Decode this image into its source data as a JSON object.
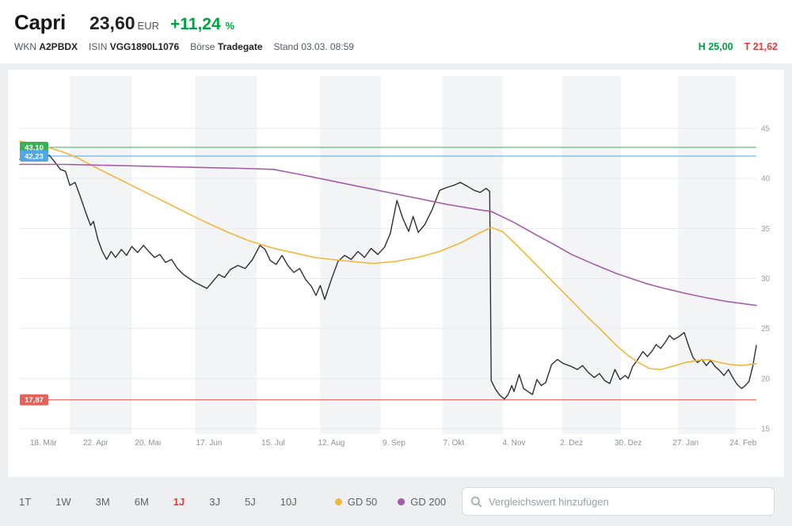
{
  "header": {
    "title": "Capri",
    "price": "23,60",
    "currency": "EUR",
    "change_value": "+11,24",
    "change_unit": "%",
    "wkn_label": "WKN",
    "wkn": "A2PBDX",
    "isin_label": "ISIN",
    "isin": "VGG1890L1076",
    "boerse_label": "Börse",
    "boerse": "Tradegate",
    "stand_label": "Stand",
    "stand": "03.03. 08:59",
    "high_label": "H",
    "high_value": "25,00",
    "low_label": "T",
    "low_value": "21,62"
  },
  "toolbar": {
    "ranges": [
      {
        "label": "1T",
        "active": false
      },
      {
        "label": "1W",
        "active": false
      },
      {
        "label": "3M",
        "active": false
      },
      {
        "label": "6M",
        "active": false
      },
      {
        "label": "1J",
        "active": true
      },
      {
        "label": "3J",
        "active": false
      },
      {
        "label": "5J",
        "active": false
      },
      {
        "label": "10J",
        "active": false
      }
    ],
    "legend": [
      {
        "label": "GD 50",
        "color": "#f1b63b"
      },
      {
        "label": "GD 200",
        "color": "#a45ba8"
      }
    ],
    "search_placeholder": "Vergleichswert hinzufügen"
  },
  "chart_data": {
    "type": "line",
    "title": "",
    "xlabel": "",
    "ylabel": "",
    "y_ticks": [
      15,
      20,
      25,
      30,
      35,
      40,
      45
    ],
    "ylim": [
      15,
      45
    ],
    "x_ticks": [
      {
        "label": "18. Mär",
        "f": 0.032
      },
      {
        "label": "22. Apr",
        "f": 0.103
      },
      {
        "label": "20. Mai",
        "f": 0.174
      },
      {
        "label": "17. Jun",
        "f": 0.257
      },
      {
        "label": "15. Jul",
        "f": 0.344
      },
      {
        "label": "12. Aug",
        "f": 0.423
      },
      {
        "label": "9. Sep",
        "f": 0.508
      },
      {
        "label": "7. Okt",
        "f": 0.589
      },
      {
        "label": "4. Nov",
        "f": 0.671
      },
      {
        "label": "2. Dez",
        "f": 0.749
      },
      {
        "label": "30. Dez",
        "f": 0.826
      },
      {
        "label": "27. Jan",
        "f": 0.904
      },
      {
        "label": "24. Feb",
        "f": 0.982
      }
    ],
    "month_bands": {
      "boundaries": [
        0,
        0.068,
        0.152,
        0.238,
        0.322,
        0.408,
        0.49,
        0.574,
        0.656,
        0.736,
        0.816,
        0.894,
        0.972,
        1.0
      ],
      "stripe_color": "#f3f4f6"
    },
    "reference_lines": [
      {
        "name": "high-52w",
        "value": 43.1,
        "label": "43,10",
        "color": "#3fae58"
      },
      {
        "name": "close",
        "value": 42.23,
        "label": "42,23",
        "color": "#4ea7e6"
      },
      {
        "name": "low-52w",
        "value": 17.87,
        "label": "17,87",
        "color": "#e2635c"
      }
    ],
    "series": [
      {
        "id": "kurs",
        "name": "Kurs",
        "color": "#303030",
        "width": 1.4,
        "points": [
          [
            0.0,
            41.9
          ],
          [
            0.01,
            42.2
          ],
          [
            0.02,
            41.8
          ],
          [
            0.032,
            42.1
          ],
          [
            0.04,
            42.3
          ],
          [
            0.048,
            41.6
          ],
          [
            0.055,
            40.9
          ],
          [
            0.062,
            40.7
          ],
          [
            0.068,
            39.3
          ],
          [
            0.075,
            39.6
          ],
          [
            0.082,
            38.2
          ],
          [
            0.09,
            36.5
          ],
          [
            0.096,
            35.3
          ],
          [
            0.1,
            35.7
          ],
          [
            0.106,
            33.9
          ],
          [
            0.112,
            32.7
          ],
          [
            0.118,
            31.9
          ],
          [
            0.124,
            32.7
          ],
          [
            0.13,
            32.1
          ],
          [
            0.138,
            32.9
          ],
          [
            0.145,
            32.3
          ],
          [
            0.152,
            33.2
          ],
          [
            0.16,
            32.6
          ],
          [
            0.168,
            33.3
          ],
          [
            0.175,
            32.7
          ],
          [
            0.183,
            32.1
          ],
          [
            0.19,
            32.4
          ],
          [
            0.198,
            31.6
          ],
          [
            0.206,
            31.9
          ],
          [
            0.214,
            31.0
          ],
          [
            0.222,
            30.4
          ],
          [
            0.23,
            30.0
          ],
          [
            0.238,
            29.6
          ],
          [
            0.246,
            29.3
          ],
          [
            0.254,
            29.0
          ],
          [
            0.262,
            29.7
          ],
          [
            0.27,
            30.4
          ],
          [
            0.278,
            30.1
          ],
          [
            0.286,
            30.9
          ],
          [
            0.296,
            31.3
          ],
          [
            0.306,
            31.0
          ],
          [
            0.316,
            31.9
          ],
          [
            0.326,
            33.3
          ],
          [
            0.333,
            32.9
          ],
          [
            0.34,
            31.8
          ],
          [
            0.348,
            31.4
          ],
          [
            0.356,
            32.3
          ],
          [
            0.364,
            31.3
          ],
          [
            0.372,
            30.6
          ],
          [
            0.38,
            31.0
          ],
          [
            0.388,
            29.9
          ],
          [
            0.396,
            29.2
          ],
          [
            0.402,
            28.3
          ],
          [
            0.408,
            29.3
          ],
          [
            0.414,
            27.9
          ],
          [
            0.423,
            29.9
          ],
          [
            0.432,
            31.7
          ],
          [
            0.441,
            32.3
          ],
          [
            0.45,
            31.9
          ],
          [
            0.459,
            32.7
          ],
          [
            0.468,
            32.1
          ],
          [
            0.477,
            33.0
          ],
          [
            0.486,
            32.4
          ],
          [
            0.495,
            33.1
          ],
          [
            0.503,
            34.5
          ],
          [
            0.512,
            37.8
          ],
          [
            0.52,
            36.0
          ],
          [
            0.528,
            34.7
          ],
          [
            0.534,
            36.2
          ],
          [
            0.541,
            34.6
          ],
          [
            0.55,
            35.4
          ],
          [
            0.56,
            36.9
          ],
          [
            0.57,
            38.8
          ],
          [
            0.58,
            39.1
          ],
          [
            0.589,
            39.3
          ],
          [
            0.598,
            39.6
          ],
          [
            0.608,
            39.2
          ],
          [
            0.617,
            38.8
          ],
          [
            0.625,
            38.6
          ],
          [
            0.633,
            39.0
          ],
          [
            0.638,
            38.7
          ],
          [
            0.64,
            19.8
          ],
          [
            0.646,
            18.9
          ],
          [
            0.652,
            18.3
          ],
          [
            0.658,
            17.95
          ],
          [
            0.663,
            18.4
          ],
          [
            0.668,
            19.3
          ],
          [
            0.671,
            18.7
          ],
          [
            0.678,
            20.4
          ],
          [
            0.684,
            19.0
          ],
          [
            0.69,
            18.7
          ],
          [
            0.696,
            18.4
          ],
          [
            0.702,
            19.9
          ],
          [
            0.708,
            19.3
          ],
          [
            0.714,
            19.6
          ],
          [
            0.722,
            21.4
          ],
          [
            0.73,
            21.9
          ],
          [
            0.738,
            21.5
          ],
          [
            0.749,
            21.2
          ],
          [
            0.757,
            20.9
          ],
          [
            0.764,
            21.3
          ],
          [
            0.772,
            20.6
          ],
          [
            0.78,
            20.1
          ],
          [
            0.787,
            20.5
          ],
          [
            0.794,
            19.8
          ],
          [
            0.801,
            19.5
          ],
          [
            0.808,
            20.9
          ],
          [
            0.815,
            19.9
          ],
          [
            0.822,
            20.3
          ],
          [
            0.826,
            20.0
          ],
          [
            0.832,
            21.2
          ],
          [
            0.839,
            21.9
          ],
          [
            0.846,
            22.7
          ],
          [
            0.852,
            22.2
          ],
          [
            0.858,
            22.7
          ],
          [
            0.864,
            23.4
          ],
          [
            0.87,
            23.0
          ],
          [
            0.876,
            23.6
          ],
          [
            0.882,
            24.3
          ],
          [
            0.888,
            23.9
          ],
          [
            0.895,
            24.2
          ],
          [
            0.902,
            24.6
          ],
          [
            0.908,
            23.3
          ],
          [
            0.914,
            22.1
          ],
          [
            0.92,
            21.6
          ],
          [
            0.926,
            21.9
          ],
          [
            0.932,
            21.3
          ],
          [
            0.938,
            21.8
          ],
          [
            0.944,
            21.2
          ],
          [
            0.95,
            20.8
          ],
          [
            0.956,
            20.3
          ],
          [
            0.962,
            20.9
          ],
          [
            0.968,
            20.1
          ],
          [
            0.974,
            19.4
          ],
          [
            0.98,
            19.0
          ],
          [
            0.985,
            19.3
          ],
          [
            0.99,
            19.7
          ],
          [
            0.995,
            21.2
          ],
          [
            1.0,
            23.3
          ]
        ]
      },
      {
        "id": "gd50",
        "name": "GD 50",
        "color": "#f1b63b",
        "width": 1.6,
        "points": [
          [
            0.0,
            43.7
          ],
          [
            0.03,
            43.3
          ],
          [
            0.06,
            42.6
          ],
          [
            0.08,
            42.0
          ],
          [
            0.1,
            41.2
          ],
          [
            0.13,
            40.1
          ],
          [
            0.16,
            39.0
          ],
          [
            0.19,
            37.9
          ],
          [
            0.22,
            36.8
          ],
          [
            0.25,
            35.7
          ],
          [
            0.28,
            34.7
          ],
          [
            0.31,
            33.8
          ],
          [
            0.34,
            33.1
          ],
          [
            0.37,
            32.6
          ],
          [
            0.4,
            32.1
          ],
          [
            0.423,
            31.9
          ],
          [
            0.45,
            31.7
          ],
          [
            0.48,
            31.5
          ],
          [
            0.51,
            31.7
          ],
          [
            0.54,
            32.1
          ],
          [
            0.57,
            32.7
          ],
          [
            0.6,
            33.6
          ],
          [
            0.62,
            34.4
          ],
          [
            0.64,
            35.1
          ],
          [
            0.655,
            34.7
          ],
          [
            0.671,
            33.6
          ],
          [
            0.69,
            32.2
          ],
          [
            0.71,
            30.7
          ],
          [
            0.73,
            29.2
          ],
          [
            0.749,
            27.8
          ],
          [
            0.77,
            26.2
          ],
          [
            0.79,
            24.8
          ],
          [
            0.81,
            23.3
          ],
          [
            0.826,
            22.3
          ],
          [
            0.84,
            21.6
          ],
          [
            0.855,
            21.0
          ],
          [
            0.87,
            20.9
          ],
          [
            0.885,
            21.2
          ],
          [
            0.904,
            21.6
          ],
          [
            0.92,
            21.8
          ],
          [
            0.935,
            21.9
          ],
          [
            0.95,
            21.6
          ],
          [
            0.965,
            21.4
          ],
          [
            0.98,
            21.3
          ],
          [
            1.0,
            21.5
          ]
        ]
      },
      {
        "id": "gd200",
        "name": "GD 200",
        "color": "#a45ba8",
        "width": 1.6,
        "points": [
          [
            0.0,
            41.4
          ],
          [
            0.06,
            41.4
          ],
          [
            0.12,
            41.3
          ],
          [
            0.18,
            41.2
          ],
          [
            0.24,
            41.1
          ],
          [
            0.3,
            41.0
          ],
          [
            0.344,
            40.9
          ],
          [
            0.38,
            40.4
          ],
          [
            0.42,
            39.8
          ],
          [
            0.46,
            39.2
          ],
          [
            0.5,
            38.6
          ],
          [
            0.54,
            38.0
          ],
          [
            0.58,
            37.4
          ],
          [
            0.62,
            36.9
          ],
          [
            0.64,
            36.7
          ],
          [
            0.671,
            35.6
          ],
          [
            0.7,
            34.4
          ],
          [
            0.73,
            33.2
          ],
          [
            0.749,
            32.4
          ],
          [
            0.78,
            31.4
          ],
          [
            0.81,
            30.5
          ],
          [
            0.826,
            30.1
          ],
          [
            0.85,
            29.5
          ],
          [
            0.87,
            29.1
          ],
          [
            0.904,
            28.5
          ],
          [
            0.93,
            28.1
          ],
          [
            0.96,
            27.7
          ],
          [
            1.0,
            27.3
          ]
        ]
      }
    ]
  }
}
